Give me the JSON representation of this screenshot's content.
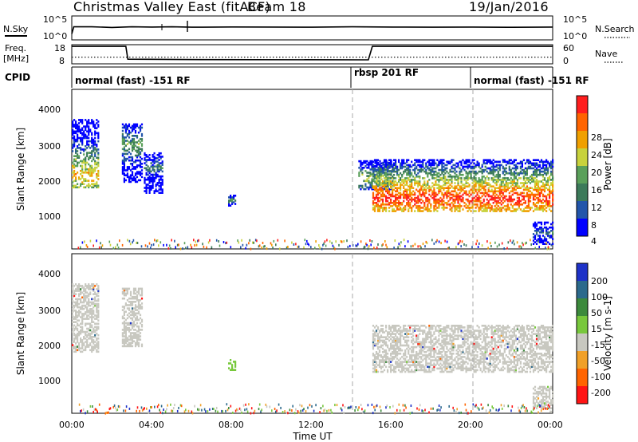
{
  "header": {
    "station": "Christmas Valley East (fitACF)",
    "beam": "Beam 18",
    "date": "19/Jan/2016"
  },
  "strip": {
    "nsky_label": "N.Sky",
    "nsearch_label": "N.Search",
    "nsky_ticks": [
      "10^5",
      "10^0"
    ],
    "nsearch_ticks": [
      "10^5",
      "10^0"
    ],
    "freq_label_1": "Freq.",
    "freq_label_2": "[MHz]",
    "freq_ticks": [
      "18",
      "8"
    ],
    "nave_label": "Nave",
    "nave_ticks": [
      "60",
      "0"
    ],
    "cpid_label": "CPID",
    "cpid_segments": [
      {
        "start": 0.0,
        "end": 14.0,
        "label": "normal (fast) -151 RF"
      },
      {
        "start": 14.0,
        "end": 20.0,
        "label": "rbsp 201 RF"
      },
      {
        "start": 20.0,
        "end": 24.0,
        "label": "normal (fast) -151 RF"
      }
    ]
  },
  "x_axis": {
    "ticks": [
      "00:00",
      "04:00",
      "08:00",
      "12:00",
      "16:00",
      "20:00",
      "00:00"
    ],
    "label": "Time UT"
  },
  "power_panel": {
    "ylabel": "Slant Range [km]",
    "yticks": [
      "4000",
      "3000",
      "2000",
      "1000"
    ],
    "colorbar_label": "Power [dB]",
    "colorbar_ticks": [
      "28",
      "24",
      "20",
      "16",
      "12",
      "8",
      "4"
    ],
    "colors": [
      "#0000ff",
      "#2255aa",
      "#3c7a5a",
      "#5aa05a",
      "#c8d23c",
      "#f0a000",
      "#ff6400",
      "#ff1e1e"
    ]
  },
  "velocity_panel": {
    "ylabel": "Slant Range [km]",
    "yticks": [
      "4000",
      "3000",
      "2000",
      "1000"
    ],
    "colorbar_label": "Velocity [m s-1]",
    "colorbar_ticks": [
      "200",
      "100",
      "50",
      "15",
      "-15",
      "-50",
      "-100",
      "-200"
    ],
    "colors": [
      "#1e32c8",
      "#2c6a8c",
      "#3c8a3c",
      "#78c83c",
      "#c8c8c0",
      "#f0a028",
      "#ff6400",
      "#ff1414"
    ]
  },
  "chart_data": {
    "type": "heatmap",
    "x_range_hours": [
      0,
      24
    ],
    "y_range_km": [
      180,
      4550
    ],
    "nsky_level": [
      {
        "t": 0.0,
        "v": 0.35
      },
      {
        "t": 0.1,
        "v": 0.9
      },
      {
        "t": 1.0,
        "v": 0.9
      },
      {
        "t": 2.0,
        "v": 0.85
      },
      {
        "t": 3.0,
        "v": 0.9
      },
      {
        "t": 4.0,
        "v": 0.88
      },
      {
        "t": 5.0,
        "v": 0.9
      },
      {
        "t": 6.0,
        "v": 0.87
      },
      {
        "t": 8.0,
        "v": 0.89
      },
      {
        "t": 10.0,
        "v": 0.88
      },
      {
        "t": 12.0,
        "v": 0.87
      },
      {
        "t": 14.0,
        "v": 0.9
      },
      {
        "t": 16.0,
        "v": 0.88
      },
      {
        "t": 18.0,
        "v": 0.87
      },
      {
        "t": 20.0,
        "v": 0.88
      },
      {
        "t": 22.0,
        "v": 0.86
      },
      {
        "t": 24.0,
        "v": 0.88
      }
    ],
    "frequency_mhz": [
      {
        "t": 0.0,
        "v": 17.5
      },
      {
        "t": 2.7,
        "v": 17.5
      },
      {
        "t": 2.8,
        "v": 10.2
      },
      {
        "t": 5.5,
        "v": 10.0
      },
      {
        "t": 14.8,
        "v": 9.8
      },
      {
        "t": 15.0,
        "v": 17.5
      },
      {
        "t": 24.0,
        "v": 17.5
      }
    ],
    "nave": [
      {
        "t": 0.0,
        "v": 20
      },
      {
        "t": 24.0,
        "v": 20
      }
    ],
    "power_regions": [
      {
        "t0": 0.0,
        "t1": 1.3,
        "r0": 1850,
        "r1": 3700,
        "core": 2200,
        "level": 5
      },
      {
        "t0": 2.5,
        "t1": 3.5,
        "r0": 2000,
        "r1": 3600,
        "core": 3000,
        "level": 3
      },
      {
        "t0": 3.6,
        "t1": 4.5,
        "r0": 1700,
        "r1": 2800,
        "core": 2400,
        "level": 2
      },
      {
        "t0": 7.8,
        "t1": 8.2,
        "r0": 1350,
        "r1": 1650,
        "core": 1500,
        "level": 3
      },
      {
        "t0": 14.3,
        "t1": 16.0,
        "r0": 1800,
        "r1": 2600,
        "core": 2100,
        "level": 4
      },
      {
        "t0": 15.0,
        "t1": 24.0,
        "r0": 1200,
        "r1": 2600,
        "core": 1550,
        "level": 7
      },
      {
        "t0": 23.0,
        "t1": 24.0,
        "r0": 300,
        "r1": 900,
        "core": 600,
        "level": 2
      }
    ],
    "velocity_regions": [
      {
        "t0": 0.0,
        "t1": 1.3,
        "r0": 1850,
        "r1": 3700,
        "v": 0
      },
      {
        "t0": 2.5,
        "t1": 3.5,
        "r0": 2000,
        "r1": 3600,
        "v": 0
      },
      {
        "t0": 7.8,
        "t1": 8.2,
        "r0": 1350,
        "r1": 1650,
        "v": 40
      },
      {
        "t0": 15.0,
        "t1": 24.0,
        "r0": 1300,
        "r1": 2600,
        "v": 0
      },
      {
        "t0": 23.0,
        "t1": 24.0,
        "r0": 300,
        "r1": 900,
        "v": 0
      }
    ]
  }
}
